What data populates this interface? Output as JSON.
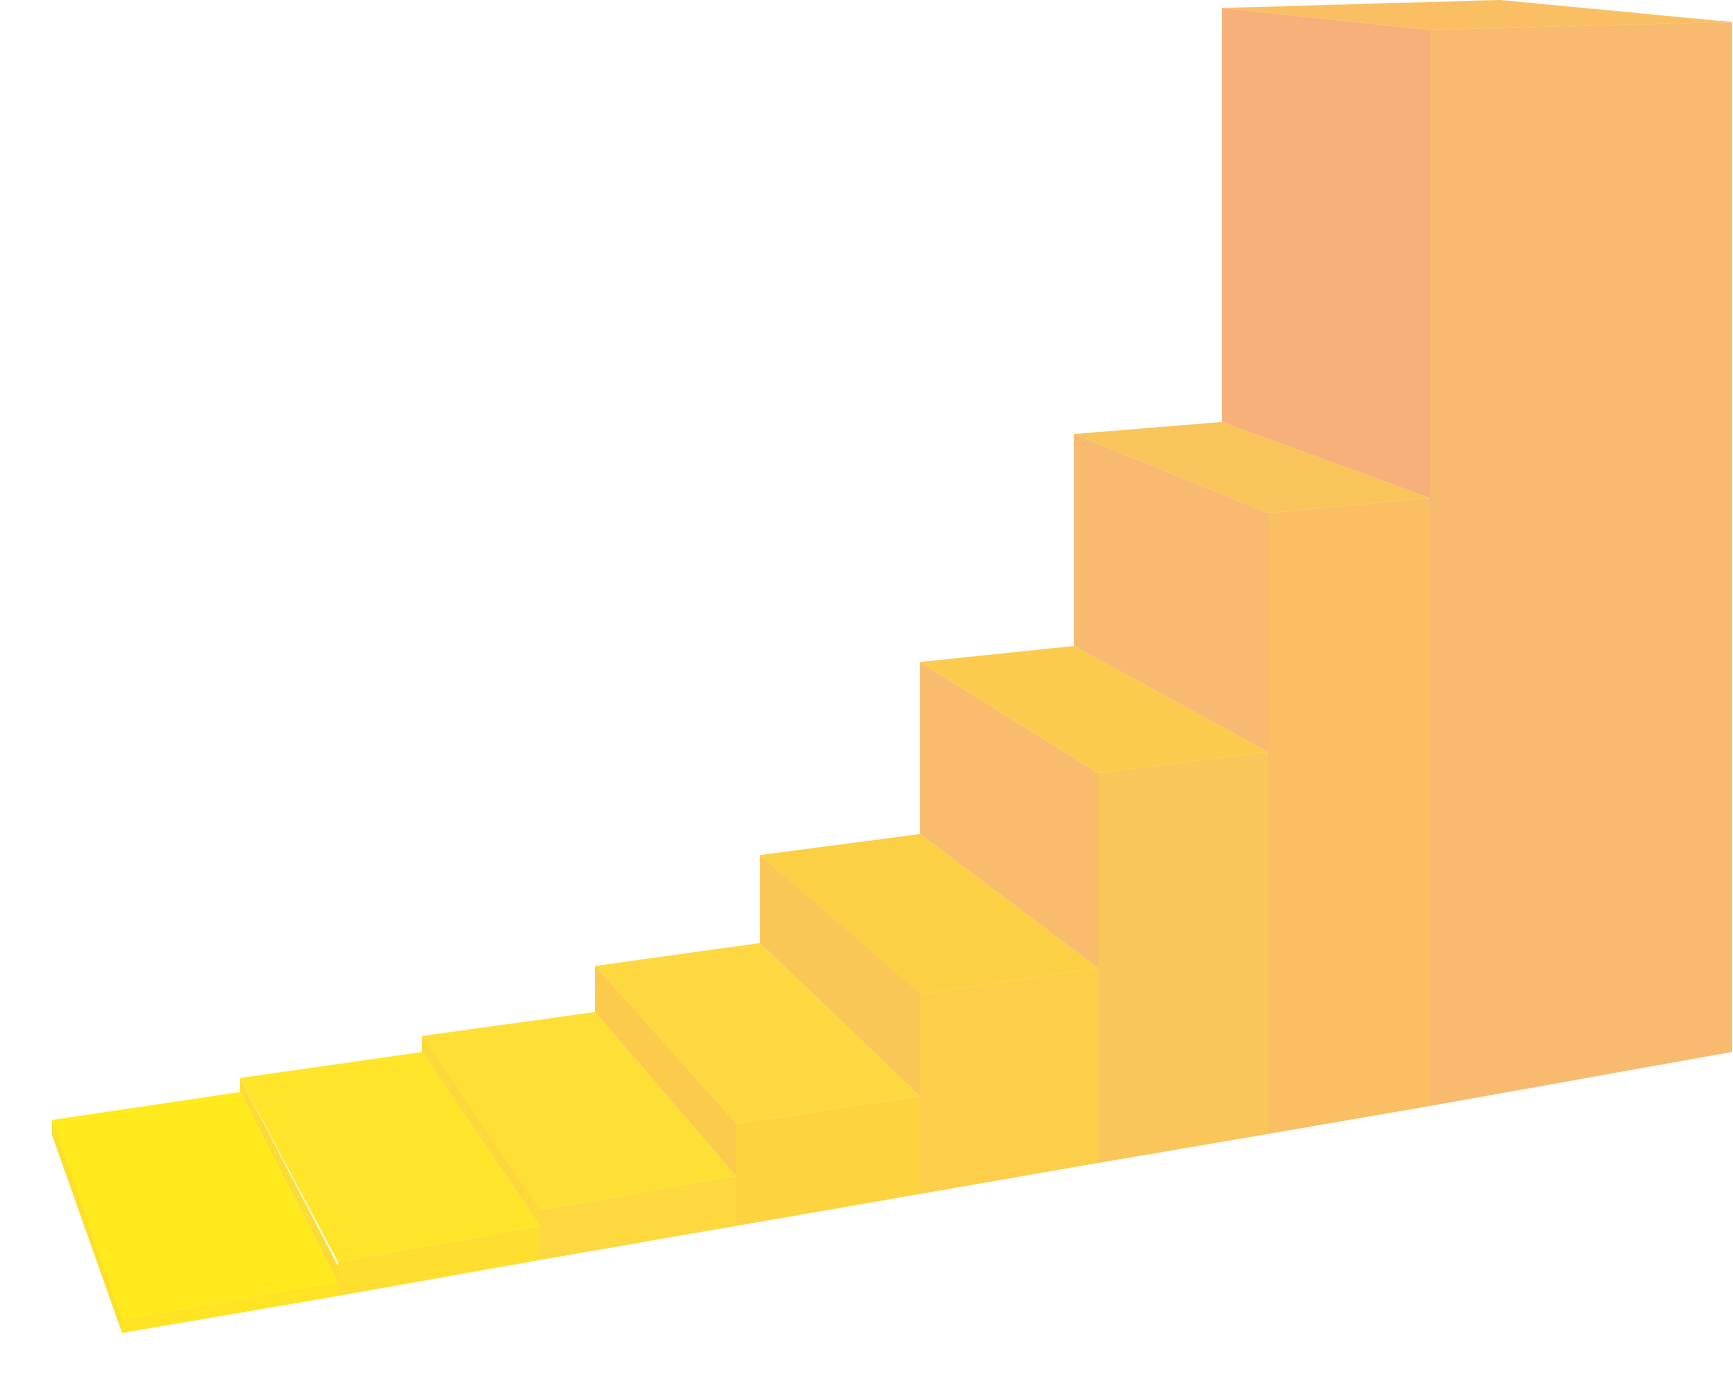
{
  "illustration": {
    "subject": "isometric-staircase",
    "step_count": 8,
    "palette": {
      "background": "#ffffff",
      "step_1": "#FEEA1D",
      "step_2": "#FEE52A",
      "step_3": "#FEDF35",
      "step_4": "#FDD840",
      "step_5": "#FCCE4A",
      "step_6": "#FAC654",
      "step_7": "#F9BD62",
      "step_8_front": "#F8BA6F",
      "step_8_left": "#F8B07A",
      "step_8_top": "#F9BF62"
    }
  }
}
